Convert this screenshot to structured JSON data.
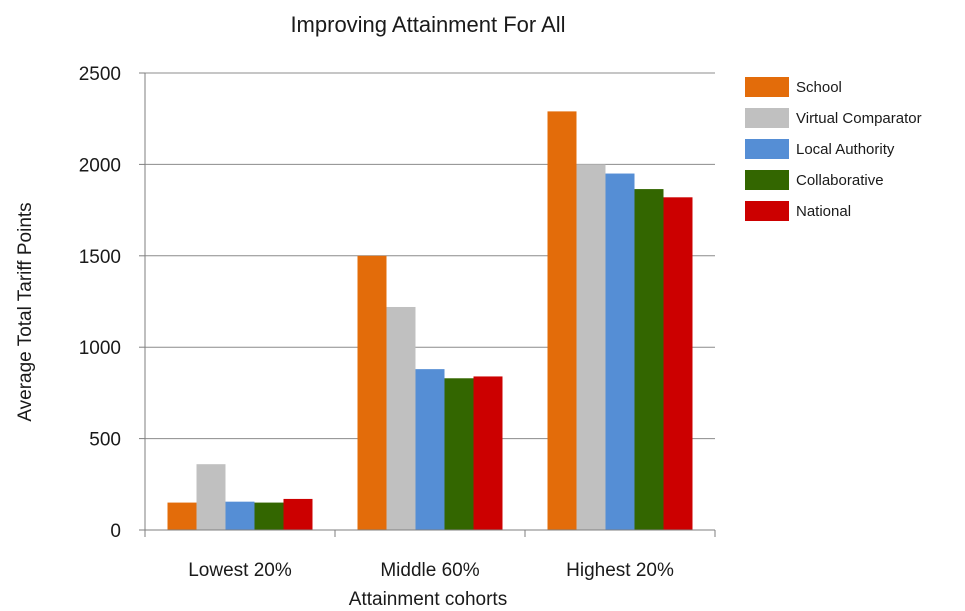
{
  "chart_data": {
    "type": "bar",
    "title": "Improving Attainment For All",
    "xlabel": "Attainment cohorts",
    "ylabel": "Average Total Tariff Points",
    "ylim": [
      0,
      2500
    ],
    "yticks": [
      0,
      500,
      1000,
      1500,
      2000,
      2500
    ],
    "grid": true,
    "legend_position": "right",
    "categories": [
      "Lowest 20%",
      "Middle 60%",
      "Highest 20%"
    ],
    "series": [
      {
        "name": "School",
        "color": "#E36C0A",
        "values": [
          150,
          1500,
          2290
        ]
      },
      {
        "name": "Virtual Comparator",
        "color": "#C0C0C0",
        "values": [
          360,
          1220,
          2000
        ]
      },
      {
        "name": "Local Authority",
        "color": "#558ED5",
        "values": [
          155,
          880,
          1950
        ]
      },
      {
        "name": "Collaborative",
        "color": "#336600",
        "values": [
          150,
          830,
          1865
        ]
      },
      {
        "name": "National",
        "color": "#CC0000",
        "values": [
          170,
          840,
          1820
        ]
      }
    ]
  }
}
